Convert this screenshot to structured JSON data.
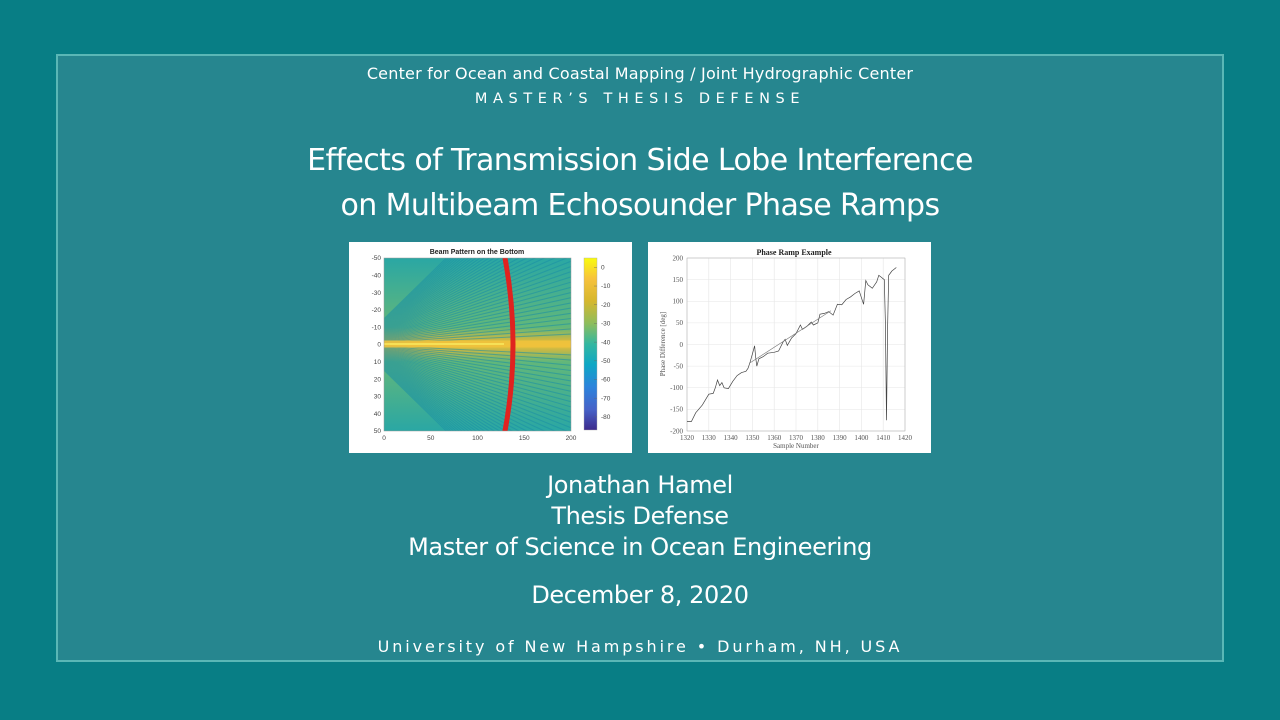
{
  "slide": {
    "organization": "Center for Ocean and Coastal Mapping / Joint Hydrographic Center",
    "subtitle": "MASTER’S THESIS DEFENSE",
    "title_line1": "Effects of Transmission Side Lobe Interference",
    "title_line2": "on Multibeam Echosounder Phase Ramps",
    "presenter": "Jonathan Hamel",
    "event": "Thesis Defense",
    "degree": "Master of Science in Ocean Engineering",
    "date": "December 8, 2020",
    "footer": "University of New Hampshire • Durham, NH, USA"
  },
  "colors": {
    "background": "#087e85",
    "panel": "#26868f",
    "panel_border": "#5ab7b6",
    "text": "#ffffff",
    "bottom_detect_line": "#e02020"
  },
  "chart_data": [
    {
      "type": "heatmap",
      "title": "Beam Pattern on the Bottom",
      "xlabel": "",
      "ylabel": "",
      "x_ticks": [
        "0",
        "50",
        "100",
        "150",
        "200"
      ],
      "y_ticks": [
        "-50",
        "-40",
        "-30",
        "-20",
        "-10",
        "0",
        "10",
        "20",
        "30",
        "40",
        "50"
      ],
      "xlim": [
        0,
        200
      ],
      "ylim": [
        -50,
        50
      ],
      "colorbar": {
        "ticks": [
          "0",
          "-10",
          "-20",
          "-30",
          "-40",
          "-50",
          "-60",
          "-70",
          "-80"
        ],
        "range": [
          -87,
          5
        ],
        "colormap": "parula"
      },
      "annotations": [
        "red curved arc from (127,-50) through (137,0) to (127,50)",
        "bright main lobe along y=0"
      ]
    },
    {
      "type": "line",
      "title": "Phase Ramp Example",
      "xlabel": "Sample Number",
      "ylabel": "Phase Difference [deg]",
      "xlim": [
        1320,
        1420
      ],
      "ylim": [
        -200,
        200
      ],
      "x_ticks": [
        "1320",
        "1330",
        "1340",
        "1350",
        "1360",
        "1370",
        "1380",
        "1390",
        "1400",
        "1410",
        "1420"
      ],
      "y_ticks": [
        "200",
        "150",
        "100",
        "50",
        "0",
        "-50",
        "-100",
        "-150",
        "-200"
      ],
      "grid": true,
      "series": [
        {
          "name": "phase difference",
          "x": [
            1320,
            1322,
            1324,
            1327,
            1330,
            1332,
            1333,
            1334,
            1335,
            1336,
            1337,
            1339,
            1341,
            1343,
            1345,
            1347,
            1348,
            1349,
            1350,
            1351,
            1351.5,
            1352,
            1353,
            1355,
            1357,
            1360,
            1362,
            1364,
            1365,
            1366,
            1368,
            1370,
            1372,
            1373,
            1375,
            1377,
            1378,
            1380,
            1381,
            1383,
            1385,
            1387,
            1389,
            1391,
            1393,
            1395,
            1397,
            1399,
            1401,
            1402,
            1403,
            1405,
            1407,
            1408,
            1409,
            1410,
            1410.5,
            1411,
            1411.5,
            1412,
            1412.5,
            1413,
            1414,
            1416
          ],
          "y": [
            -178,
            -178,
            -158,
            -140,
            -115,
            -113,
            -100,
            -82,
            -95,
            -88,
            -100,
            -102,
            -85,
            -72,
            -65,
            -62,
            -55,
            -40,
            -22,
            -3,
            -30,
            -50,
            -33,
            -28,
            -20,
            -18,
            -15,
            5,
            12,
            -2,
            15,
            25,
            45,
            35,
            42,
            52,
            45,
            50,
            70,
            72,
            76,
            68,
            93,
            92,
            104,
            110,
            118,
            124,
            93,
            148,
            138,
            130,
            145,
            160,
            156,
            152,
            150,
            50,
            -175,
            40,
            160,
            163,
            170,
            178
          ]
        },
        {
          "name": "linear fit",
          "x": [
            1349,
            1386
          ],
          "y": [
            -42,
            78
          ]
        }
      ]
    }
  ]
}
